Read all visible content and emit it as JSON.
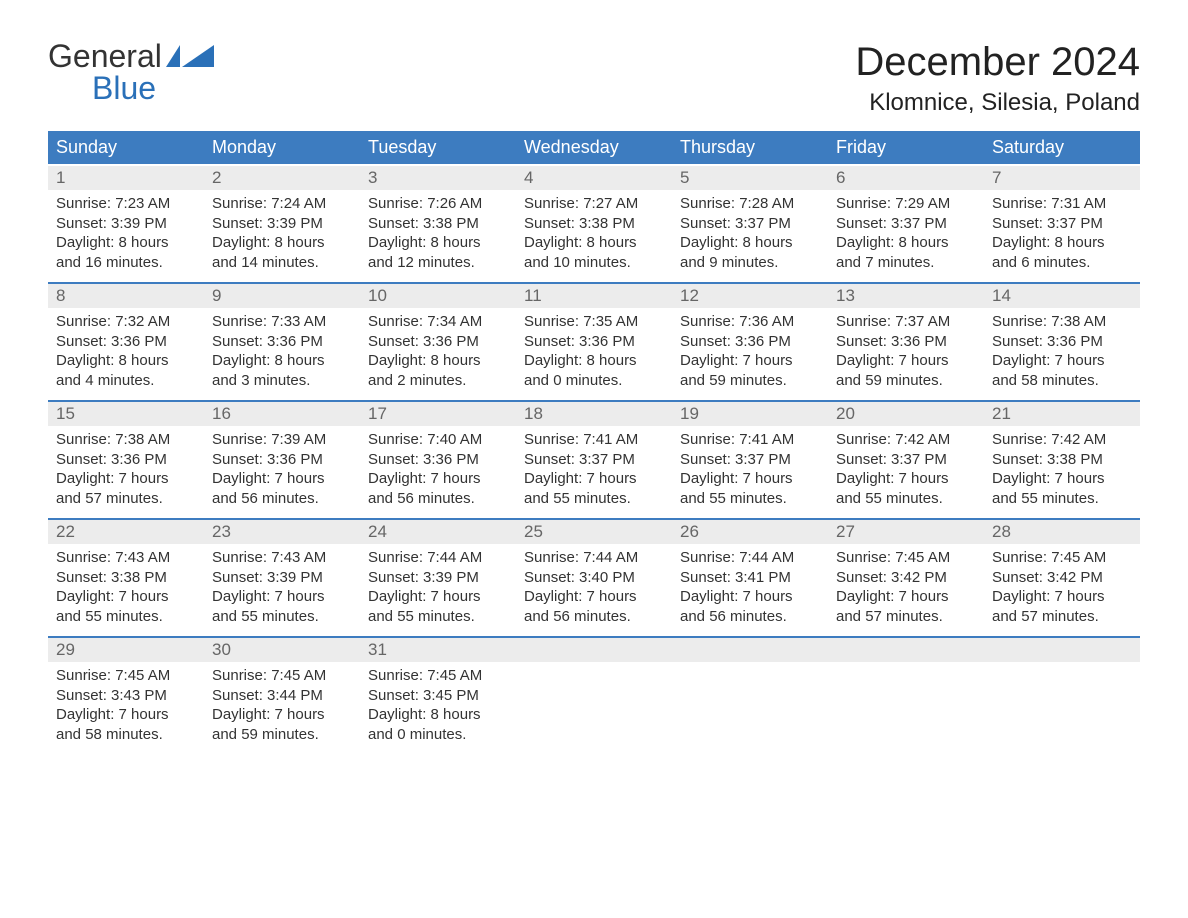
{
  "colors": {
    "brand_blue": "#2a70b8",
    "header_row_bg": "#3d7cc0",
    "daynum_row_bg": "#ececec",
    "separator": "#3d7cc0",
    "background": "#ffffff",
    "text_dark": "#333333"
  },
  "logo": {
    "word1": "General",
    "word2": "Blue"
  },
  "header": {
    "title": "December 2024",
    "subtitle": "Klomnice, Silesia, Poland"
  },
  "dow": [
    "Sunday",
    "Monday",
    "Tuesday",
    "Wednesday",
    "Thursday",
    "Friday",
    "Saturday"
  ],
  "weeks": [
    [
      {
        "n": "1",
        "sr": "Sunrise: 7:23 AM",
        "ss": "Sunset: 3:39 PM",
        "d1": "Daylight: 8 hours",
        "d2": "and 16 minutes."
      },
      {
        "n": "2",
        "sr": "Sunrise: 7:24 AM",
        "ss": "Sunset: 3:39 PM",
        "d1": "Daylight: 8 hours",
        "d2": "and 14 minutes."
      },
      {
        "n": "3",
        "sr": "Sunrise: 7:26 AM",
        "ss": "Sunset: 3:38 PM",
        "d1": "Daylight: 8 hours",
        "d2": "and 12 minutes."
      },
      {
        "n": "4",
        "sr": "Sunrise: 7:27 AM",
        "ss": "Sunset: 3:38 PM",
        "d1": "Daylight: 8 hours",
        "d2": "and 10 minutes."
      },
      {
        "n": "5",
        "sr": "Sunrise: 7:28 AM",
        "ss": "Sunset: 3:37 PM",
        "d1": "Daylight: 8 hours",
        "d2": "and 9 minutes."
      },
      {
        "n": "6",
        "sr": "Sunrise: 7:29 AM",
        "ss": "Sunset: 3:37 PM",
        "d1": "Daylight: 8 hours",
        "d2": "and 7 minutes."
      },
      {
        "n": "7",
        "sr": "Sunrise: 7:31 AM",
        "ss": "Sunset: 3:37 PM",
        "d1": "Daylight: 8 hours",
        "d2": "and 6 minutes."
      }
    ],
    [
      {
        "n": "8",
        "sr": "Sunrise: 7:32 AM",
        "ss": "Sunset: 3:36 PM",
        "d1": "Daylight: 8 hours",
        "d2": "and 4 minutes."
      },
      {
        "n": "9",
        "sr": "Sunrise: 7:33 AM",
        "ss": "Sunset: 3:36 PM",
        "d1": "Daylight: 8 hours",
        "d2": "and 3 minutes."
      },
      {
        "n": "10",
        "sr": "Sunrise: 7:34 AM",
        "ss": "Sunset: 3:36 PM",
        "d1": "Daylight: 8 hours",
        "d2": "and 2 minutes."
      },
      {
        "n": "11",
        "sr": "Sunrise: 7:35 AM",
        "ss": "Sunset: 3:36 PM",
        "d1": "Daylight: 8 hours",
        "d2": "and 0 minutes."
      },
      {
        "n": "12",
        "sr": "Sunrise: 7:36 AM",
        "ss": "Sunset: 3:36 PM",
        "d1": "Daylight: 7 hours",
        "d2": "and 59 minutes."
      },
      {
        "n": "13",
        "sr": "Sunrise: 7:37 AM",
        "ss": "Sunset: 3:36 PM",
        "d1": "Daylight: 7 hours",
        "d2": "and 59 minutes."
      },
      {
        "n": "14",
        "sr": "Sunrise: 7:38 AM",
        "ss": "Sunset: 3:36 PM",
        "d1": "Daylight: 7 hours",
        "d2": "and 58 minutes."
      }
    ],
    [
      {
        "n": "15",
        "sr": "Sunrise: 7:38 AM",
        "ss": "Sunset: 3:36 PM",
        "d1": "Daylight: 7 hours",
        "d2": "and 57 minutes."
      },
      {
        "n": "16",
        "sr": "Sunrise: 7:39 AM",
        "ss": "Sunset: 3:36 PM",
        "d1": "Daylight: 7 hours",
        "d2": "and 56 minutes."
      },
      {
        "n": "17",
        "sr": "Sunrise: 7:40 AM",
        "ss": "Sunset: 3:36 PM",
        "d1": "Daylight: 7 hours",
        "d2": "and 56 minutes."
      },
      {
        "n": "18",
        "sr": "Sunrise: 7:41 AM",
        "ss": "Sunset: 3:37 PM",
        "d1": "Daylight: 7 hours",
        "d2": "and 55 minutes."
      },
      {
        "n": "19",
        "sr": "Sunrise: 7:41 AM",
        "ss": "Sunset: 3:37 PM",
        "d1": "Daylight: 7 hours",
        "d2": "and 55 minutes."
      },
      {
        "n": "20",
        "sr": "Sunrise: 7:42 AM",
        "ss": "Sunset: 3:37 PM",
        "d1": "Daylight: 7 hours",
        "d2": "and 55 minutes."
      },
      {
        "n": "21",
        "sr": "Sunrise: 7:42 AM",
        "ss": "Sunset: 3:38 PM",
        "d1": "Daylight: 7 hours",
        "d2": "and 55 minutes."
      }
    ],
    [
      {
        "n": "22",
        "sr": "Sunrise: 7:43 AM",
        "ss": "Sunset: 3:38 PM",
        "d1": "Daylight: 7 hours",
        "d2": "and 55 minutes."
      },
      {
        "n": "23",
        "sr": "Sunrise: 7:43 AM",
        "ss": "Sunset: 3:39 PM",
        "d1": "Daylight: 7 hours",
        "d2": "and 55 minutes."
      },
      {
        "n": "24",
        "sr": "Sunrise: 7:44 AM",
        "ss": "Sunset: 3:39 PM",
        "d1": "Daylight: 7 hours",
        "d2": "and 55 minutes."
      },
      {
        "n": "25",
        "sr": "Sunrise: 7:44 AM",
        "ss": "Sunset: 3:40 PM",
        "d1": "Daylight: 7 hours",
        "d2": "and 56 minutes."
      },
      {
        "n": "26",
        "sr": "Sunrise: 7:44 AM",
        "ss": "Sunset: 3:41 PM",
        "d1": "Daylight: 7 hours",
        "d2": "and 56 minutes."
      },
      {
        "n": "27",
        "sr": "Sunrise: 7:45 AM",
        "ss": "Sunset: 3:42 PM",
        "d1": "Daylight: 7 hours",
        "d2": "and 57 minutes."
      },
      {
        "n": "28",
        "sr": "Sunrise: 7:45 AM",
        "ss": "Sunset: 3:42 PM",
        "d1": "Daylight: 7 hours",
        "d2": "and 57 minutes."
      }
    ],
    [
      {
        "n": "29",
        "sr": "Sunrise: 7:45 AM",
        "ss": "Sunset: 3:43 PM",
        "d1": "Daylight: 7 hours",
        "d2": "and 58 minutes."
      },
      {
        "n": "30",
        "sr": "Sunrise: 7:45 AM",
        "ss": "Sunset: 3:44 PM",
        "d1": "Daylight: 7 hours",
        "d2": "and 59 minutes."
      },
      {
        "n": "31",
        "sr": "Sunrise: 7:45 AM",
        "ss": "Sunset: 3:45 PM",
        "d1": "Daylight: 8 hours",
        "d2": "and 0 minutes."
      },
      null,
      null,
      null,
      null
    ]
  ]
}
